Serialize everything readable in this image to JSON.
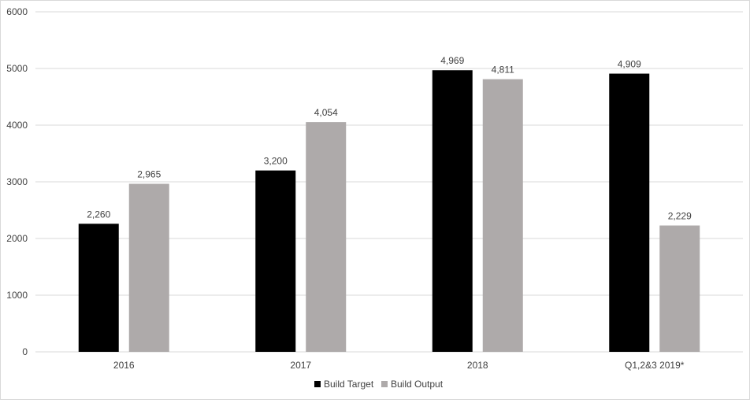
{
  "chart_data": {
    "type": "bar",
    "title": "",
    "xlabel": "",
    "ylabel": "",
    "categories": [
      "2016",
      "2017",
      "2018",
      "Q1,2&3 2019*"
    ],
    "series": [
      {
        "name": "Build Target",
        "values": [
          2260,
          3200,
          4969,
          4909
        ],
        "labels": [
          "2,260",
          "3,200",
          "4,969",
          "4,909"
        ],
        "color": "#000000"
      },
      {
        "name": "Build Output",
        "values": [
          2965,
          4054,
          4811,
          2229
        ],
        "labels": [
          "2,965",
          "4,054",
          "4,811",
          "2,229"
        ],
        "color": "#aeaaaa"
      }
    ],
    "ylim": [
      0,
      6000
    ],
    "yticks": [
      0,
      1000,
      2000,
      3000,
      4000,
      5000,
      6000
    ],
    "ytick_labels": [
      "0",
      "1000",
      "2000",
      "3000",
      "4000",
      "5000",
      "6000"
    ],
    "grid": true,
    "gridline_color": "#d9d9d9",
    "legend_position": "bottom"
  }
}
